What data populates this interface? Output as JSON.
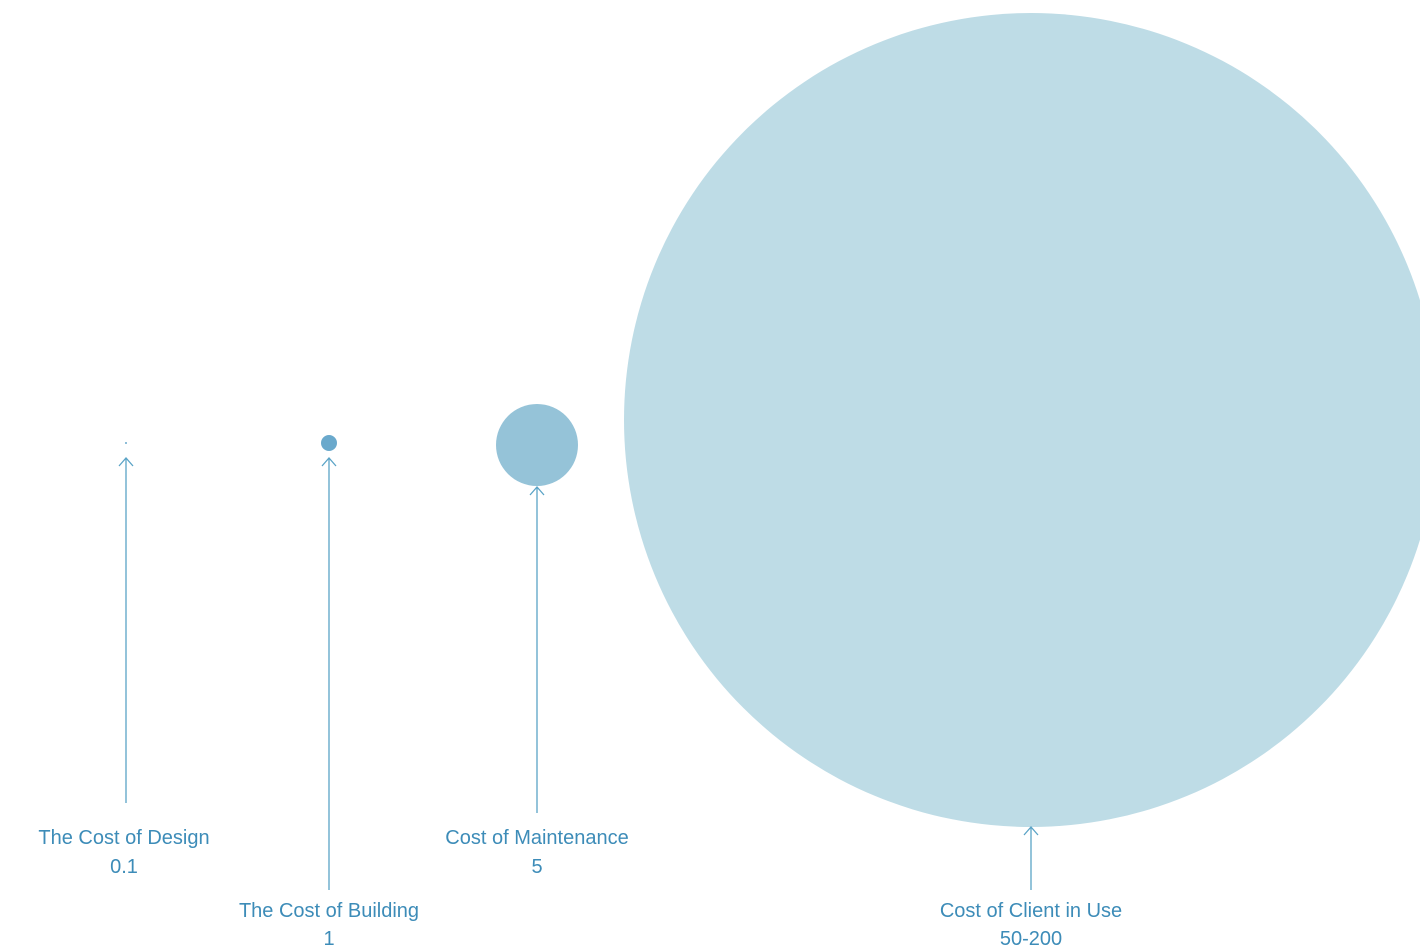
{
  "colors": {
    "background": "#ffffff",
    "text": "#3d8cb8",
    "line": "#5aa3c6",
    "small_circle": "#6aa9cc",
    "medium_circle": "#95c3d8",
    "large_circle": "#bedce6"
  },
  "items": [
    {
      "name": "The Cost of Design",
      "value": "0.1"
    },
    {
      "name": "The Cost of Building",
      "value": "1"
    },
    {
      "name": "Cost of Maintenance",
      "value": "5"
    },
    {
      "name": "Cost of Client in Use",
      "value": "50-200"
    }
  ]
}
